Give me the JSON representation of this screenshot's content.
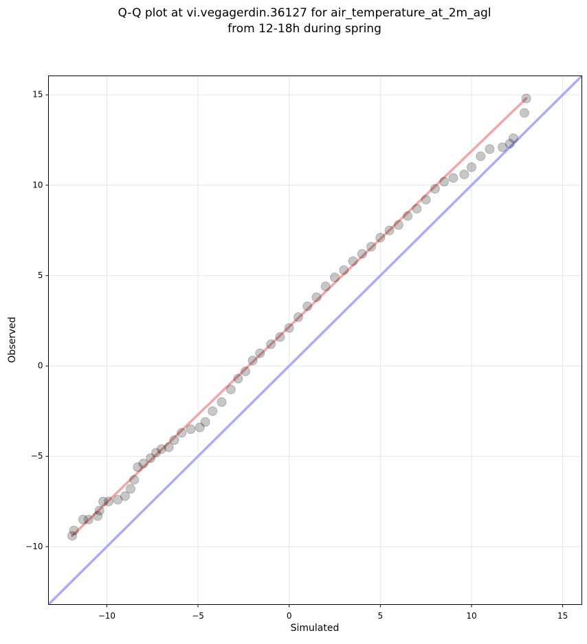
{
  "chart_data": {
    "type": "scatter",
    "title_lines": [
      "Q-Q plot at vi.vegagerdin.36127 for air_temperature_at_2m_agl",
      "from 12-18h during spring"
    ],
    "x_label": "Simulated",
    "y_label": "Observed",
    "xlim": [
      -13.2,
      16.05
    ],
    "ylim": [
      -13.2,
      16.05
    ],
    "xticks": [
      {
        "value": -10,
        "label": "−10"
      },
      {
        "value": -5,
        "label": "−5"
      },
      0,
      5,
      10,
      15
    ],
    "yticks": [
      {
        "value": -10,
        "label": "−10"
      },
      {
        "value": -5,
        "label": "−5"
      },
      0,
      5,
      10,
      15
    ],
    "grid": true,
    "point_color": "#000000",
    "point_opacity": 0.22,
    "x": [
      -11.9,
      -11.8,
      -11.3,
      -11.0,
      -10.5,
      -10.4,
      -10.2,
      -9.9,
      -9.4,
      -9.0,
      -8.7,
      -8.5,
      -8.3,
      -8.0,
      -7.6,
      -7.3,
      -7.0,
      -6.6,
      -6.3,
      -5.9,
      -5.4,
      -4.9,
      -4.6,
      -4.2,
      -3.7,
      -3.2,
      -2.8,
      -2.4,
      -2.0,
      -1.6,
      -1.0,
      -0.5,
      0,
      0.5,
      1.0,
      1.5,
      2.0,
      2.5,
      3.0,
      3.5,
      4.0,
      4.5,
      5.0,
      5.5,
      6.0,
      6.5,
      7.0,
      7.5,
      8.0,
      8.5,
      9.0,
      9.6,
      10.0,
      10.5,
      11.0,
      11.7,
      12.1,
      12.3,
      12.9,
      13.0
    ],
    "y": [
      -9.4,
      -9.1,
      -8.5,
      -8.5,
      -8.3,
      -8.0,
      -7.5,
      -7.5,
      -7.4,
      -7.2,
      -6.8,
      -6.3,
      -5.6,
      -5.4,
      -5.1,
      -4.8,
      -4.6,
      -4.5,
      -4.1,
      -3.7,
      -3.5,
      -3.4,
      -3.1,
      -2.5,
      -2.0,
      -1.3,
      -0.7,
      -0.3,
      0.3,
      0.7,
      1.2,
      1.6,
      2.1,
      2.7,
      3.3,
      3.8,
      4.4,
      4.9,
      5.3,
      5.8,
      6.2,
      6.6,
      7.1,
      7.5,
      7.8,
      8.3,
      8.7,
      9.2,
      9.8,
      10.2,
      10.4,
      10.6,
      11.0,
      11.6,
      12.0,
      12.1,
      12.3,
      12.6,
      14.0,
      14.8
    ],
    "identity_line": {
      "color": "#aaaaff",
      "x": [
        -13.2,
        16.05
      ],
      "y": [
        -13.2,
        16.05
      ]
    },
    "fit_line": {
      "color": "#f4a6a6",
      "x": [
        -11.9,
        13.0
      ],
      "y": [
        -9.4,
        14.8
      ]
    }
  }
}
